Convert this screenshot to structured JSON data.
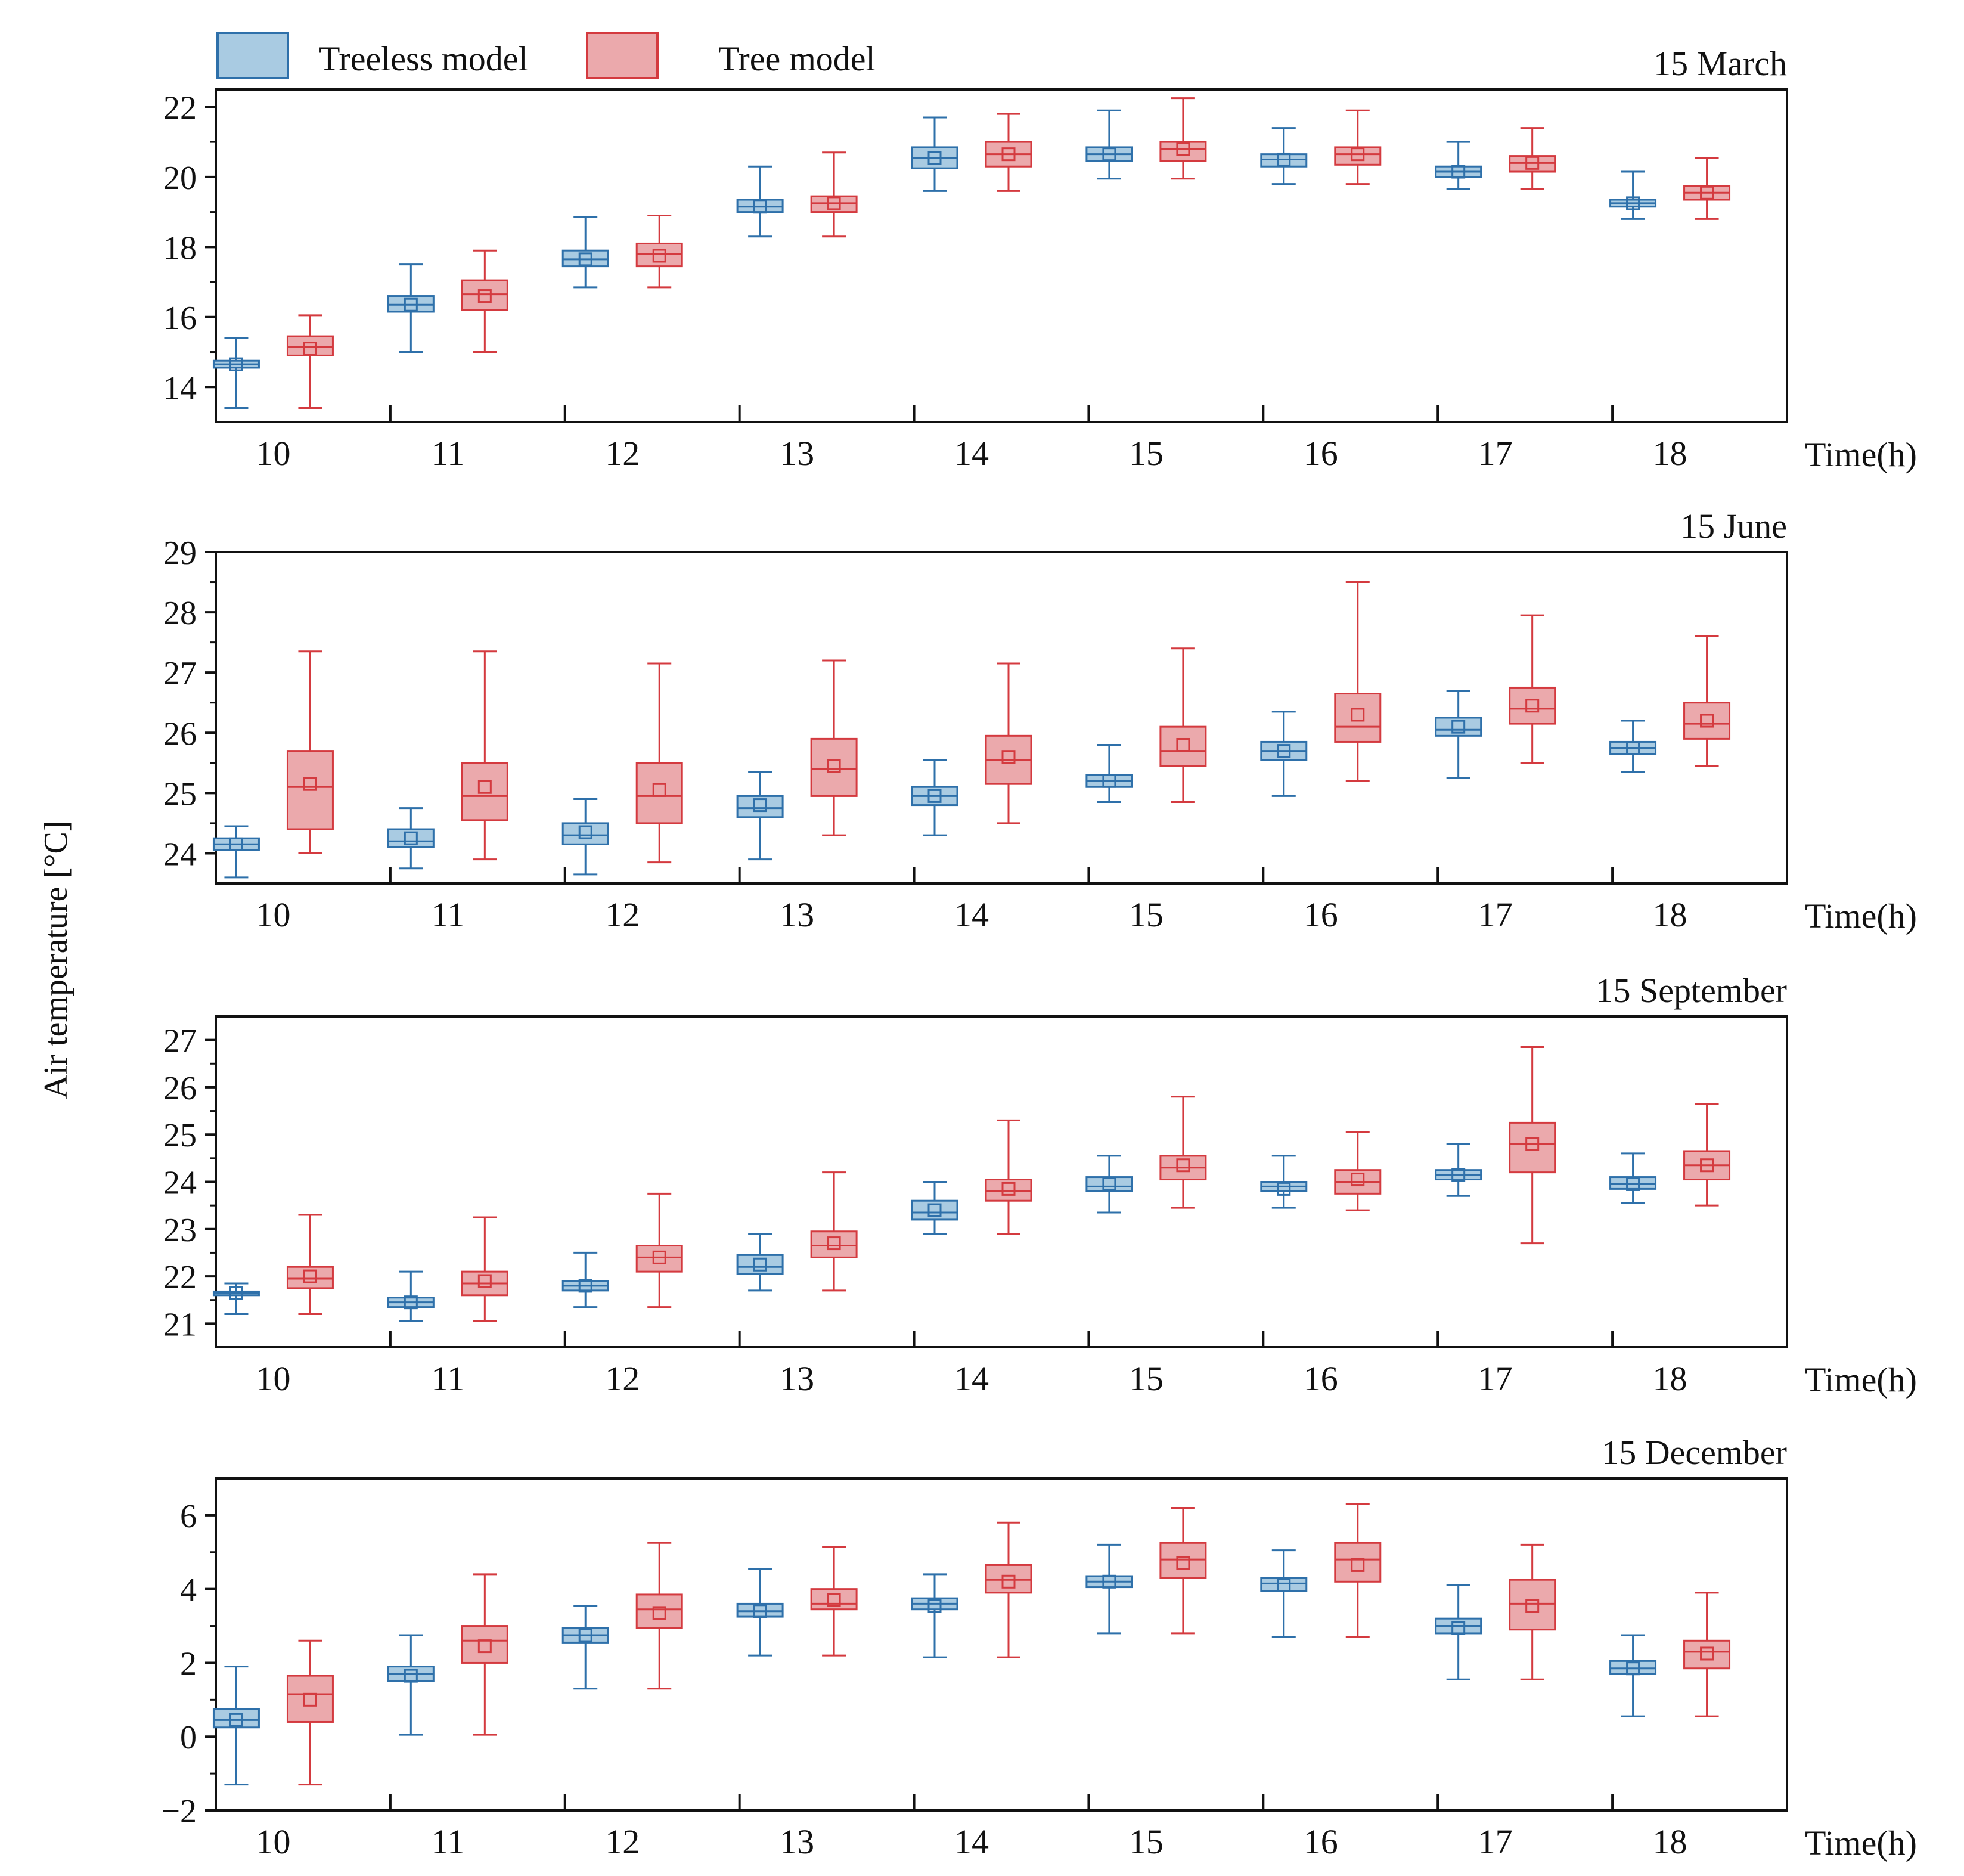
{
  "legend": {
    "items": [
      {
        "label": "Treeless model",
        "fill": "#a9cbe2",
        "stroke": "#2e70aa"
      },
      {
        "label": "Tree model",
        "fill": "#eba9ac",
        "stroke": "#d43a3f"
      }
    ]
  },
  "y_axis_label": "Air temperature [°C]",
  "chart_data": [
    {
      "type": "box",
      "title": "15 March",
      "xlabel": "Time(h)",
      "categories": [
        "10",
        "11",
        "12",
        "13",
        "14",
        "15",
        "16",
        "17",
        "18"
      ],
      "ylim": [
        13,
        22.5
      ],
      "yticks": [
        14,
        16,
        18,
        20,
        22
      ],
      "series": [
        {
          "name": "Treeless model",
          "min": [
            13.4,
            15.0,
            16.85,
            18.3,
            19.6,
            19.95,
            19.8,
            19.65,
            18.8
          ],
          "q1": [
            14.55,
            16.15,
            17.45,
            19.0,
            20.25,
            20.45,
            20.3,
            20.0,
            19.15
          ],
          "median": [
            14.65,
            16.35,
            17.65,
            19.15,
            20.55,
            20.65,
            20.5,
            20.15,
            19.25
          ],
          "q3": [
            14.75,
            16.6,
            17.9,
            19.35,
            20.85,
            20.85,
            20.65,
            20.3,
            19.35
          ],
          "max": [
            15.4,
            17.5,
            18.85,
            20.3,
            21.7,
            21.9,
            21.4,
            21.0,
            20.15
          ],
          "mean": [
            14.65,
            16.35,
            17.65,
            19.15,
            20.55,
            20.65,
            20.5,
            20.15,
            19.25
          ]
        },
        {
          "name": "Tree model",
          "min": [
            13.4,
            15.0,
            16.85,
            18.3,
            19.6,
            19.95,
            19.8,
            19.65,
            18.8
          ],
          "q1": [
            14.9,
            16.2,
            17.45,
            19.0,
            20.3,
            20.45,
            20.35,
            20.15,
            19.35
          ],
          "median": [
            15.15,
            16.65,
            17.8,
            19.25,
            20.65,
            20.8,
            20.65,
            20.4,
            19.55
          ],
          "q3": [
            15.45,
            17.05,
            18.1,
            19.45,
            21.0,
            21.0,
            20.85,
            20.6,
            19.75
          ],
          "max": [
            16.05,
            17.9,
            18.9,
            20.7,
            21.8,
            22.25,
            21.9,
            21.4,
            20.55
          ],
          "mean": [
            15.1,
            16.6,
            17.75,
            19.25,
            20.65,
            20.8,
            20.65,
            20.4,
            19.55
          ]
        }
      ]
    },
    {
      "type": "box",
      "title": "15 June",
      "xlabel": "Time(h)",
      "categories": [
        "10",
        "11",
        "12",
        "13",
        "14",
        "15",
        "16",
        "17",
        "18"
      ],
      "ylim": [
        23.5,
        29
      ],
      "yticks": [
        24,
        25,
        26,
        27,
        28,
        29
      ],
      "series": [
        {
          "name": "Treeless model",
          "min": [
            23.6,
            23.75,
            23.65,
            23.9,
            24.3,
            24.85,
            24.95,
            25.25,
            25.35
          ],
          "q1": [
            24.05,
            24.1,
            24.15,
            24.6,
            24.8,
            25.1,
            25.55,
            25.95,
            25.65
          ],
          "median": [
            24.15,
            24.2,
            24.3,
            24.75,
            24.95,
            25.2,
            25.7,
            26.05,
            25.75
          ],
          "q3": [
            24.25,
            24.4,
            24.5,
            24.95,
            25.1,
            25.3,
            25.85,
            26.25,
            25.85
          ],
          "max": [
            24.45,
            24.75,
            24.9,
            25.35,
            25.55,
            25.8,
            26.35,
            26.7,
            26.2
          ],
          "mean": [
            24.15,
            24.25,
            24.35,
            24.8,
            24.95,
            25.2,
            25.7,
            26.1,
            25.75
          ]
        },
        {
          "name": "Tree model",
          "min": [
            24.0,
            23.9,
            23.85,
            24.3,
            24.5,
            24.85,
            25.2,
            25.5,
            25.45
          ],
          "q1": [
            24.4,
            24.55,
            24.5,
            24.95,
            25.15,
            25.45,
            25.85,
            26.15,
            25.9
          ],
          "median": [
            25.1,
            24.95,
            24.95,
            25.4,
            25.55,
            25.7,
            26.1,
            26.4,
            26.15
          ],
          "q3": [
            25.7,
            25.5,
            25.5,
            25.9,
            25.95,
            26.1,
            26.65,
            26.75,
            26.5
          ],
          "max": [
            27.35,
            27.35,
            27.15,
            27.2,
            27.15,
            27.4,
            28.5,
            27.95,
            27.6
          ],
          "mean": [
            25.15,
            25.1,
            25.05,
            25.45,
            25.6,
            25.8,
            26.3,
            26.45,
            26.2
          ]
        }
      ]
    },
    {
      "type": "box",
      "title": "15 September",
      "xlabel": "Time(h)",
      "categories": [
        "10",
        "11",
        "12",
        "13",
        "14",
        "15",
        "16",
        "17",
        "18"
      ],
      "ylim": [
        20.5,
        27.5
      ],
      "yticks": [
        21,
        22,
        23,
        24,
        25,
        26,
        27
      ],
      "series": [
        {
          "name": "Treeless model",
          "min": [
            21.2,
            21.05,
            21.35,
            21.7,
            22.9,
            23.35,
            23.45,
            23.7,
            23.55
          ],
          "q1": [
            21.6,
            21.35,
            21.7,
            22.05,
            23.2,
            23.8,
            23.8,
            24.05,
            23.85
          ],
          "median": [
            21.65,
            21.45,
            21.8,
            22.2,
            23.35,
            23.9,
            23.9,
            24.15,
            23.95
          ],
          "q3": [
            21.68,
            21.55,
            21.9,
            22.45,
            23.6,
            24.1,
            24.0,
            24.25,
            24.1
          ],
          "max": [
            21.85,
            22.1,
            22.5,
            22.9,
            24.0,
            24.55,
            24.55,
            24.8,
            24.6
          ],
          "mean": [
            21.65,
            21.45,
            21.8,
            22.25,
            23.4,
            23.95,
            23.85,
            24.15,
            23.95
          ]
        },
        {
          "name": "Tree model",
          "min": [
            21.2,
            21.05,
            21.35,
            21.7,
            22.9,
            23.45,
            23.4,
            22.7,
            23.5
          ],
          "q1": [
            21.75,
            21.6,
            22.1,
            22.4,
            23.6,
            24.05,
            23.75,
            24.2,
            24.05
          ],
          "median": [
            21.95,
            21.85,
            22.4,
            22.65,
            23.8,
            24.3,
            24.0,
            24.8,
            24.35
          ],
          "q3": [
            22.2,
            22.1,
            22.65,
            22.95,
            24.05,
            24.55,
            24.25,
            25.25,
            24.65
          ],
          "max": [
            23.3,
            23.25,
            23.75,
            24.2,
            25.3,
            25.8,
            25.05,
            26.85,
            25.65
          ],
          "mean": [
            22.0,
            21.9,
            22.4,
            22.7,
            23.85,
            24.35,
            24.05,
            24.8,
            24.35
          ]
        }
      ]
    },
    {
      "type": "box",
      "title": "15 December",
      "xlabel": "Time(h)",
      "categories": [
        "10",
        "11",
        "12",
        "13",
        "14",
        "15",
        "16",
        "17",
        "18"
      ],
      "ylim": [
        -2,
        7
      ],
      "yticks": [
        -2,
        0,
        2,
        4,
        6
      ],
      "series": [
        {
          "name": "Treeless model",
          "min": [
            -1.3,
            0.05,
            1.3,
            2.2,
            2.15,
            2.8,
            2.7,
            1.55,
            0.55
          ],
          "q1": [
            0.25,
            1.5,
            2.55,
            3.25,
            3.45,
            4.05,
            3.95,
            2.8,
            1.7
          ],
          "median": [
            0.45,
            1.7,
            2.75,
            3.4,
            3.6,
            4.2,
            4.15,
            3.0,
            1.85
          ],
          "q3": [
            0.75,
            1.9,
            2.95,
            3.6,
            3.75,
            4.35,
            4.3,
            3.2,
            2.05
          ],
          "max": [
            1.9,
            2.75,
            3.55,
            4.55,
            4.4,
            5.2,
            5.05,
            4.1,
            2.75
          ],
          "mean": [
            0.45,
            1.65,
            2.75,
            3.4,
            3.55,
            4.2,
            4.1,
            2.95,
            1.85
          ]
        },
        {
          "name": "Tree model",
          "min": [
            -1.3,
            0.05,
            1.3,
            2.2,
            2.15,
            2.8,
            2.7,
            1.55,
            0.55
          ],
          "q1": [
            0.4,
            2.0,
            2.95,
            3.45,
            3.9,
            4.3,
            4.2,
            2.9,
            1.85
          ],
          "median": [
            1.15,
            2.6,
            3.45,
            3.6,
            4.25,
            4.8,
            4.8,
            3.6,
            2.3
          ],
          "q3": [
            1.65,
            3.0,
            3.85,
            4.0,
            4.65,
            5.25,
            5.25,
            4.25,
            2.6
          ],
          "max": [
            2.6,
            4.4,
            5.25,
            5.15,
            5.8,
            6.2,
            6.3,
            5.2,
            3.9
          ],
          "mean": [
            1.0,
            2.45,
            3.35,
            3.7,
            4.2,
            4.7,
            4.65,
            3.55,
            2.25
          ]
        }
      ]
    }
  ]
}
